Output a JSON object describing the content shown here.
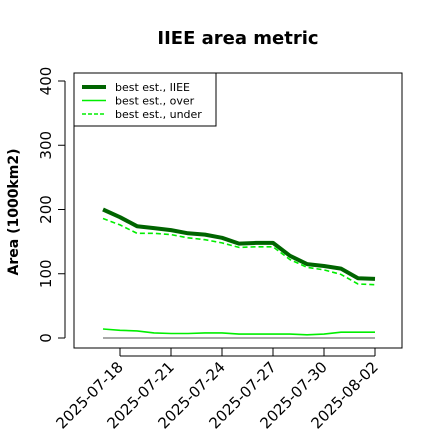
{
  "chart_data": {
    "type": "line",
    "title": "IIEE area metric",
    "xlabel": "",
    "ylabel": "Area (1000km2)",
    "ylim": [
      0,
      400
    ],
    "yticks": [
      0,
      100,
      200,
      300,
      400
    ],
    "xticks": [
      "2025-07-18",
      "2025-07-21",
      "2025-07-24",
      "2025-07-27",
      "2025-07-30",
      "2025-08-02"
    ],
    "x": [
      "2025-07-17",
      "2025-07-18",
      "2025-07-19",
      "2025-07-20",
      "2025-07-21",
      "2025-07-22",
      "2025-07-23",
      "2025-07-24",
      "2025-07-25",
      "2025-07-26",
      "2025-07-27",
      "2025-07-28",
      "2025-07-29",
      "2025-07-30",
      "2025-07-31",
      "2025-08-01",
      "2025-08-02"
    ],
    "series": [
      {
        "name": "best est., IIEE",
        "color": "#006400",
        "style": "solid-thick",
        "values": [
          200,
          188,
          174,
          171,
          168,
          163,
          161,
          156,
          147,
          148,
          148,
          128,
          115,
          112,
          108,
          93,
          92
        ]
      },
      {
        "name": "best est., over",
        "color": "#00ee00",
        "style": "solid",
        "values": [
          14,
          12,
          11,
          8,
          7,
          7,
          8,
          8,
          6,
          6,
          6,
          6,
          5,
          6,
          9,
          9,
          9
        ]
      },
      {
        "name": "best est., under",
        "color": "#00ee00",
        "style": "dashed",
        "values": [
          186,
          176,
          163,
          163,
          161,
          156,
          153,
          148,
          141,
          142,
          142,
          122,
          110,
          106,
          99,
          84,
          83
        ]
      }
    ],
    "baseline": 0,
    "legend_position": "top-left",
    "grid": false
  }
}
